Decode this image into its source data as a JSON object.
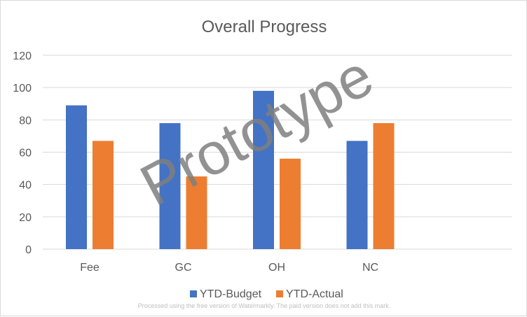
{
  "chart_data": {
    "type": "bar",
    "title": "Overall Progress",
    "categories": [
      "Fee",
      "GC",
      "OH",
      "NC"
    ],
    "series": [
      {
        "name": "YTD-Budget",
        "color": "#4472C4",
        "values": [
          89,
          78,
          98,
          67
        ]
      },
      {
        "name": "YTD-Actual",
        "color": "#ED7D31",
        "values": [
          67,
          45,
          56,
          78
        ]
      }
    ],
    "ylim": [
      0,
      120
    ],
    "yticks": [
      "0",
      "20",
      "40",
      "60",
      "80",
      "100",
      "120"
    ],
    "grid": true,
    "legend_position": "bottom"
  },
  "watermark": "Prototype",
  "footer_note": "Processed using the free version of Watermarkly. The paid version does not add this mark."
}
